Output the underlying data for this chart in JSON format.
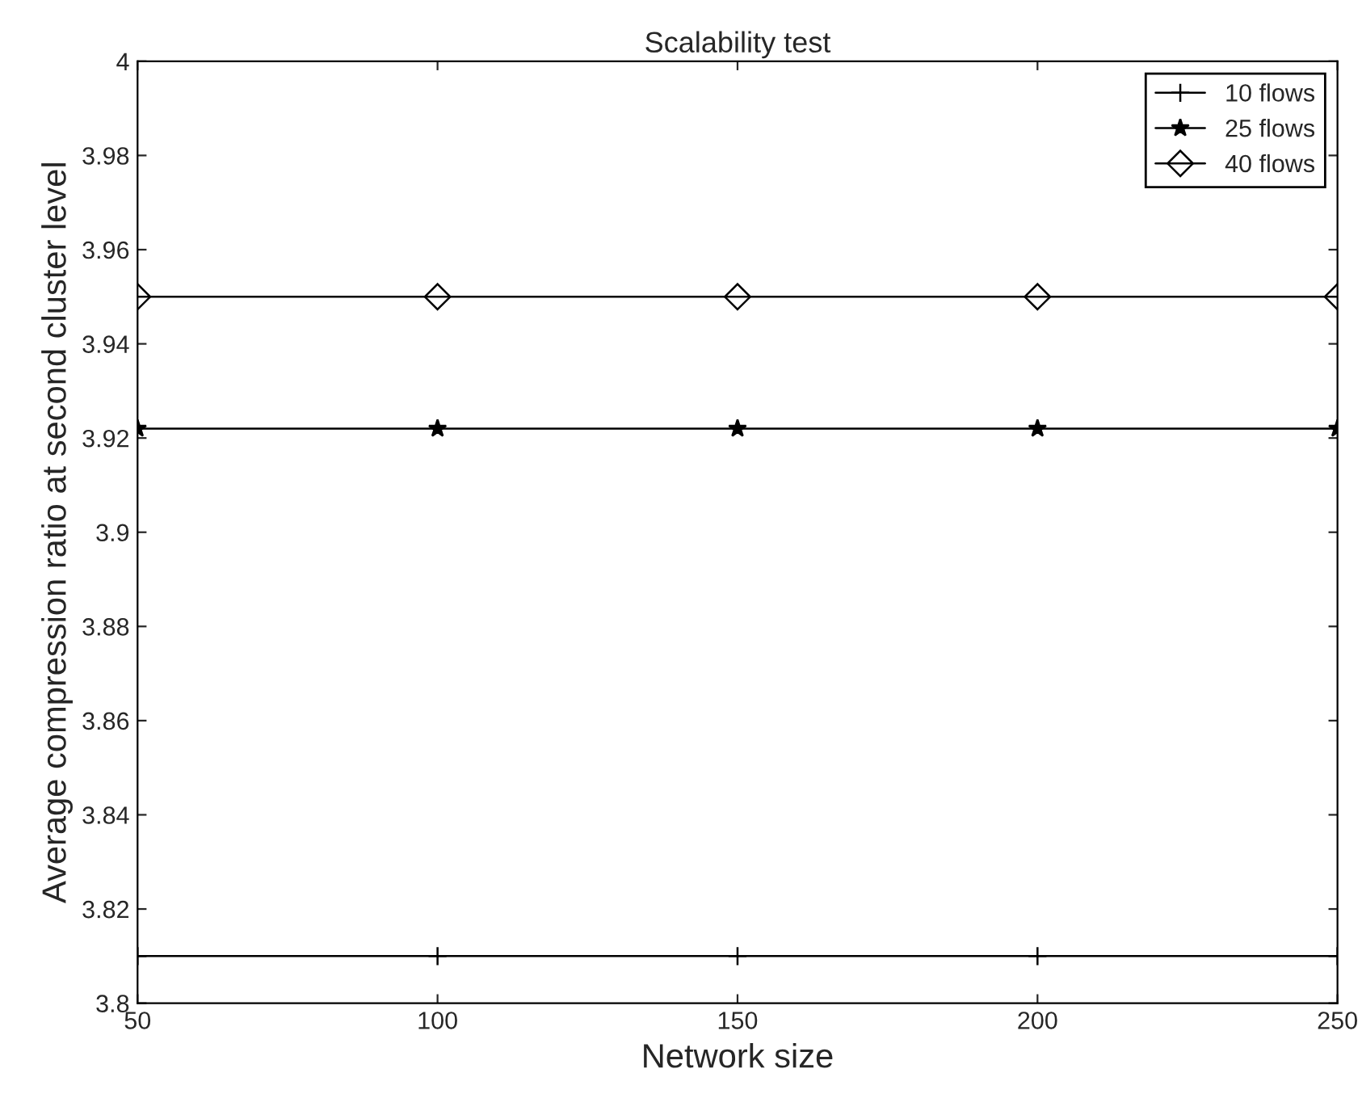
{
  "chart_data": {
    "type": "line",
    "title": "Scalability test",
    "xlabel": "Network size",
    "ylabel": "Average compression ratio at second cluster level",
    "x": [
      50,
      100,
      150,
      200,
      250
    ],
    "series": [
      {
        "name": "10 flows",
        "color": "#000000",
        "marker": "cross",
        "values": [
          3.81,
          3.81,
          3.81,
          3.81,
          3.81
        ]
      },
      {
        "name": "25 flows",
        "color": "#000000",
        "marker": "star",
        "values": [
          3.922,
          3.922,
          3.922,
          3.922,
          3.922
        ]
      },
      {
        "name": "40 flows",
        "color": "#000000",
        "marker": "diamond",
        "values": [
          3.95,
          3.95,
          3.95,
          3.95,
          3.95
        ]
      }
    ],
    "xlim": [
      50,
      250
    ],
    "xticks": [
      50,
      100,
      150,
      200,
      250
    ],
    "ylim": [
      3.8,
      4
    ],
    "yticks": [
      3.8,
      3.82,
      3.84,
      3.86,
      3.88,
      3.9,
      3.92,
      3.94,
      3.96,
      3.98,
      4
    ],
    "grid": false,
    "legend": "top right",
    "line_style": "solid"
  }
}
